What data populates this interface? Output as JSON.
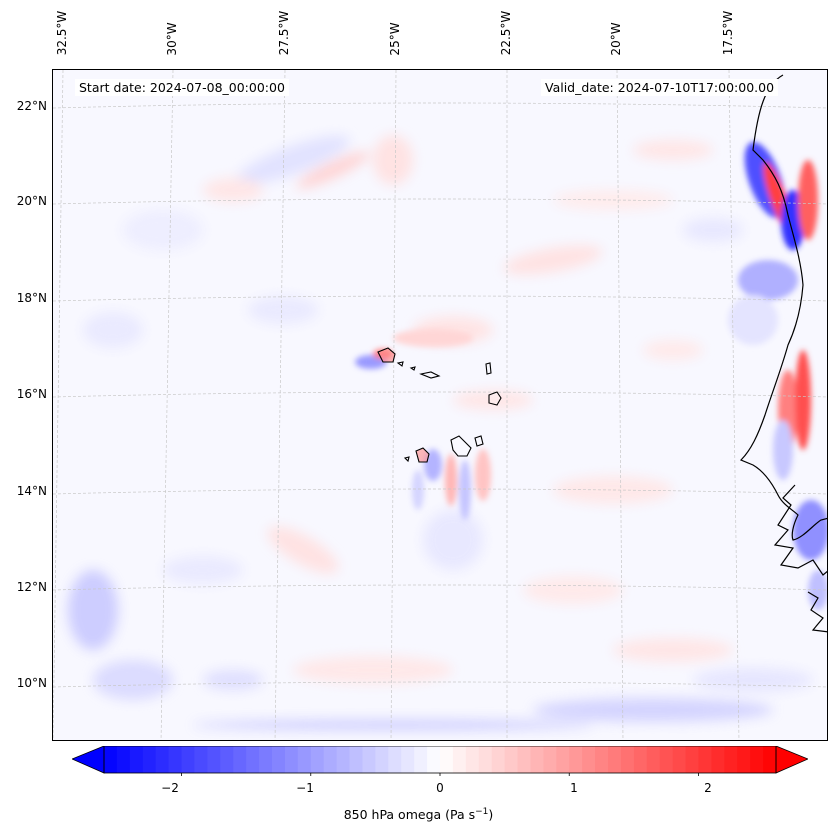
{
  "map": {
    "start_date": "Start date: 2024-07-08_00:00:00",
    "valid_date": "Valid_date: 2024-07-10T17:00:00.00",
    "lon_labels": [
      "32.5°W",
      "30°W",
      "27.5°W",
      "25°W",
      "22.5°W",
      "20°W",
      "17.5°W"
    ],
    "lat_labels": [
      "22°N",
      "20°N",
      "18°N",
      "16°N",
      "14°N",
      "12°N",
      "10°N"
    ],
    "variable": "850 hPa omega",
    "units": "Pa s⁻¹",
    "colormap": "bwr",
    "colors": {
      "negative": "#0000ff",
      "zero": "#ffffff",
      "positive": "#ff0000",
      "coast": "#000000",
      "grid": "#c8c8c8"
    }
  },
  "colorbar": {
    "range": [
      -2.6,
      2.6
    ],
    "ticks": [
      "−2",
      "−1",
      "0",
      "1",
      "2"
    ],
    "tick_values": [
      -2,
      -1,
      0,
      1,
      2
    ],
    "extend": "both",
    "label_text": "850 hPa omega (Pa s",
    "label_sup": "−1",
    "label_close": ")"
  }
}
